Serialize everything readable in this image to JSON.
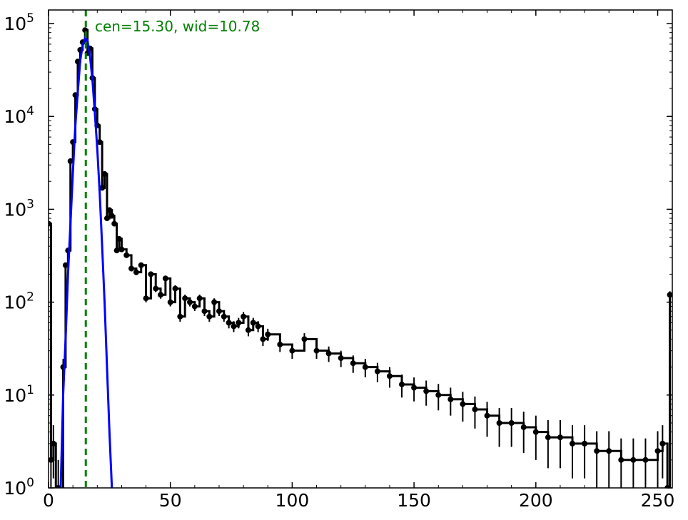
{
  "chart_data": {
    "type": "line",
    "title": "",
    "xlabel": "",
    "ylabel": "",
    "xlim": [
      0,
      256
    ],
    "ylim": [
      1,
      140000
    ],
    "yscale": "log",
    "grid": false,
    "x_ticks": [
      "0",
      "50",
      "100",
      "150",
      "200",
      "250"
    ],
    "y_ticks": [
      {
        "base": "10",
        "exp": "0"
      },
      {
        "base": "10",
        "exp": "1"
      },
      {
        "base": "10",
        "exp": "2"
      },
      {
        "base": "10",
        "exp": "3"
      },
      {
        "base": "10",
        "exp": "4"
      },
      {
        "base": "10",
        "exp": "5"
      }
    ],
    "annotation": "cen=15.30, wid=10.78",
    "vline_x": 15.3,
    "colors": {
      "data": "#000000",
      "fit": "#0000ff",
      "vline": "#008000"
    },
    "series": [
      {
        "style": "black step line with error bars and markers",
        "x": [
          0,
          1,
          2,
          3,
          4,
          5,
          6,
          7,
          8,
          9,
          10,
          11,
          12,
          13,
          14,
          15,
          16,
          17,
          18,
          19,
          20,
          21,
          22,
          23,
          24,
          25,
          26,
          27,
          28,
          29,
          30,
          32,
          34,
          36,
          38,
          40,
          42,
          44,
          46,
          48,
          50,
          52,
          54,
          56,
          58,
          60,
          62,
          64,
          66,
          68,
          70,
          72,
          74,
          76,
          78,
          80,
          82,
          84,
          86,
          88,
          90,
          95,
          100,
          105,
          110,
          115,
          120,
          125,
          130,
          135,
          140,
          145,
          150,
          155,
          160,
          165,
          170,
          175,
          180,
          185,
          190,
          195,
          200,
          205,
          210,
          215,
          220,
          225,
          230,
          235,
          240,
          245,
          250,
          252,
          254,
          255
        ],
        "y": [
          700,
          2,
          3,
          0.5,
          1,
          0.6,
          20,
          250,
          360,
          3300,
          5300,
          17000,
          39000,
          52000,
          63000,
          85000,
          48000,
          54000,
          26000,
          12000,
          8000,
          5300,
          1700,
          2400,
          800,
          980,
          850,
          700,
          360,
          480,
          370,
          320,
          230,
          210,
          250,
          110,
          200,
          140,
          120,
          180,
          100,
          140,
          70,
          110,
          100,
          90,
          110,
          80,
          70,
          100,
          80,
          70,
          60,
          55,
          60,
          70,
          50,
          60,
          55,
          40,
          45,
          35,
          30,
          40,
          30,
          28,
          25,
          22,
          20,
          18,
          16,
          13,
          12,
          11,
          10,
          9,
          8,
          7,
          6,
          5,
          5,
          4.5,
          4,
          3.5,
          3.5,
          3,
          3,
          2.5,
          2.5,
          2,
          2,
          2,
          2.5,
          3,
          1,
          120
        ]
      },
      {
        "style": "blue gaussian fit",
        "x": [
          5,
          6,
          7,
          8,
          9,
          10,
          11,
          12,
          13,
          14,
          15,
          16,
          17,
          18,
          19,
          20,
          21,
          22,
          23,
          24,
          25,
          26
        ],
        "y": [
          1,
          10,
          40,
          200,
          700,
          2500,
          8000,
          18000,
          40000,
          58000,
          70000,
          65000,
          45000,
          25000,
          11000,
          4500,
          1500,
          400,
          100,
          20,
          4,
          1
        ]
      }
    ]
  }
}
